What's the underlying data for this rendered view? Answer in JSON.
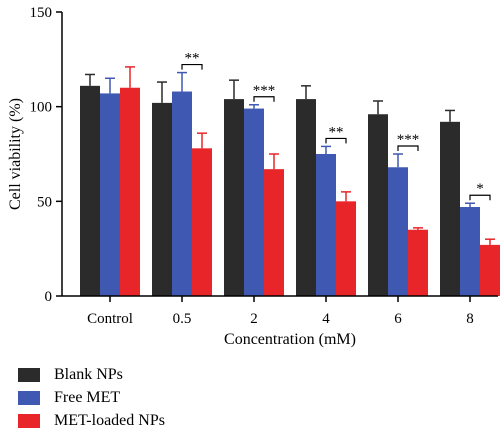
{
  "chart_data": {
    "type": "bar",
    "title": "",
    "xlabel": "Concentration (mM)",
    "ylabel": "Cell viability (%)",
    "ylim": [
      0,
      150
    ],
    "yticks": [
      0,
      50,
      100,
      150
    ],
    "categories": [
      "Control",
      "0.5",
      "2",
      "4",
      "6",
      "8"
    ],
    "series": [
      {
        "name": "Blank NPs",
        "color": "#2b2b2b",
        "values": [
          111,
          102,
          104,
          104,
          96,
          92
        ],
        "errors": [
          6,
          11,
          10,
          7,
          7,
          6
        ]
      },
      {
        "name": "Free MET",
        "color": "#3f59b3",
        "values": [
          107,
          108,
          99,
          75,
          68,
          47
        ],
        "errors": [
          8,
          10,
          2,
          4,
          7,
          2
        ]
      },
      {
        "name": "MET-loaded NPs",
        "color": "#e8262a",
        "values": [
          110,
          78,
          67,
          50,
          35,
          27
        ],
        "errors": [
          11,
          8,
          8,
          5,
          1,
          3
        ]
      }
    ],
    "significance": [
      {
        "category": "0.5",
        "label": "**"
      },
      {
        "category": "2",
        "label": "***"
      },
      {
        "category": "4",
        "label": "**"
      },
      {
        "category": "6",
        "label": "***"
      },
      {
        "category": "8",
        "label": "*"
      }
    ],
    "legend_position": "bottom-left"
  }
}
